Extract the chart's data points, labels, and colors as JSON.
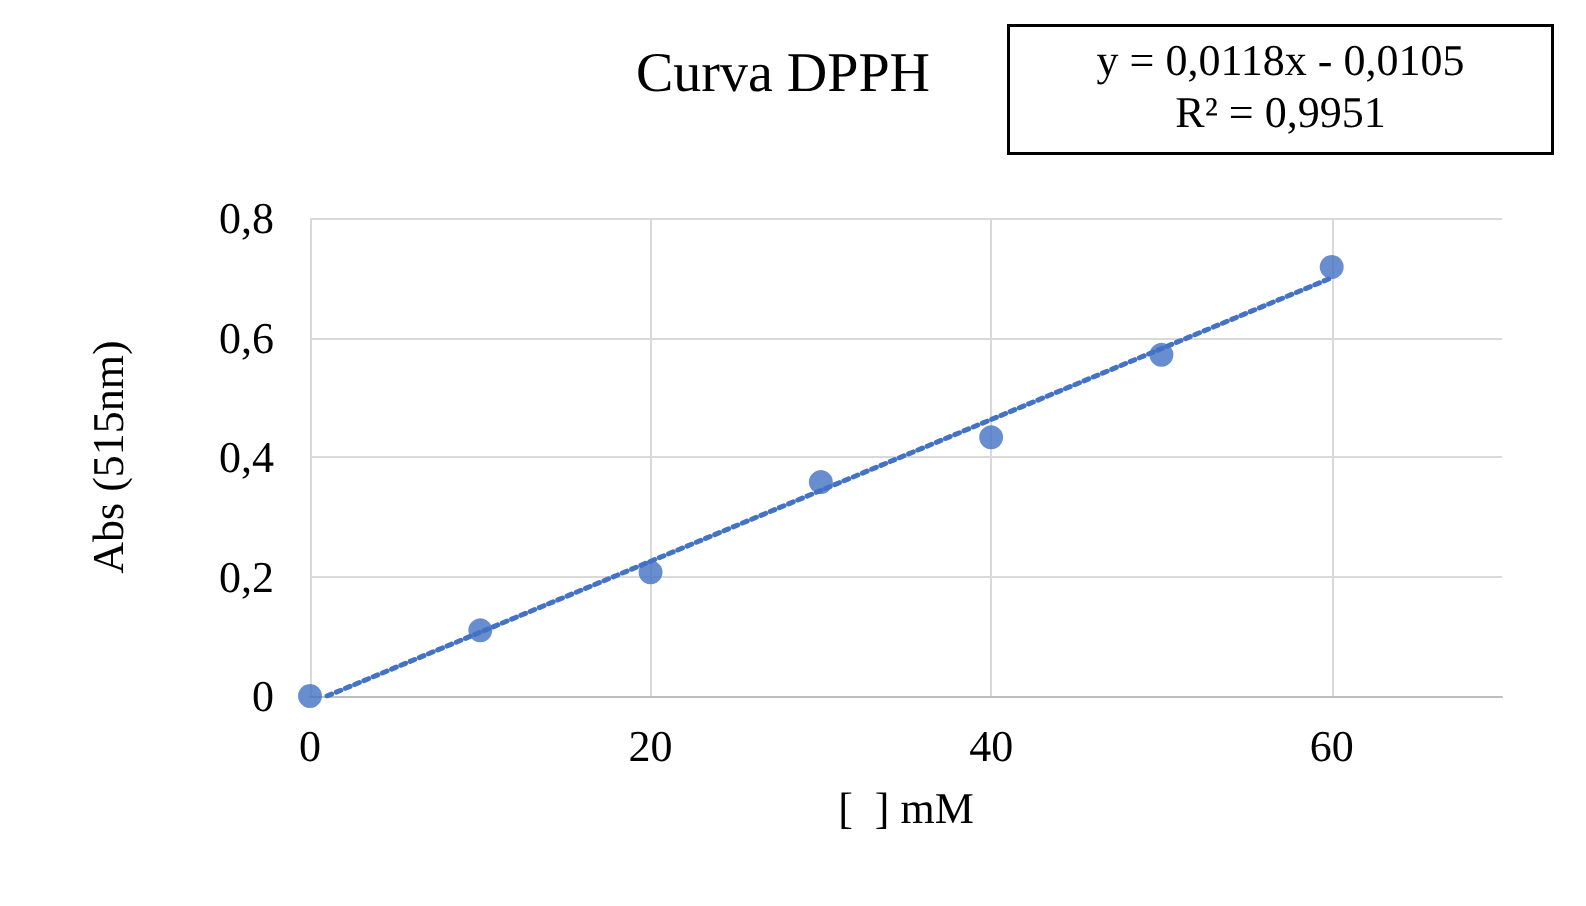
{
  "chart_data": {
    "type": "scatter",
    "title": "Curva DPPH",
    "xlabel": "[  ] mM",
    "ylabel": "Abs (515nm)",
    "annotations": [
      "y = 0,0118x - 0,0105",
      "R² = 0,9951"
    ],
    "x": [
      0,
      10,
      20,
      30,
      40,
      50,
      60
    ],
    "series": [
      {
        "color": "#4472c4",
        "marker": "circle",
        "values": [
          0,
          0.11,
          0.207,
          0.358,
          0.433,
          0.571,
          0.718
        ]
      },
      {
        "type": "line",
        "color": "#4472c4",
        "marker": "none",
        "line_style": "dotted",
        "x": [
          1,
          60
        ],
        "values": [
          0,
          0.7
        ]
      }
    ],
    "xlim": [
      0,
      70
    ],
    "xticks": [
      0,
      20,
      40,
      60
    ],
    "ylim": [
      0,
      0.8
    ],
    "yticks": [
      0,
      {
        "value": 0.2,
        "label": "0,2"
      },
      {
        "value": 0.4,
        "label": "0,4"
      },
      {
        "value": 0.6,
        "label": "0,6"
      },
      {
        "value": 0.8,
        "label": "0,8"
      }
    ],
    "grid": true
  }
}
